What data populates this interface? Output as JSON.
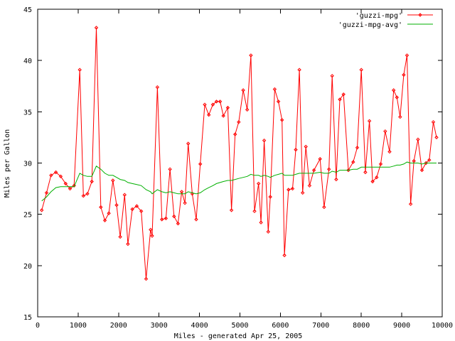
{
  "chart_data": {
    "type": "line",
    "xlabel": "Miles - generated Apr 25, 2005",
    "ylabel": "Miles per Gallon",
    "xlim": [
      0,
      10000
    ],
    "ylim": [
      15,
      45
    ],
    "xticks": [
      0,
      1000,
      2000,
      3000,
      4000,
      5000,
      6000,
      7000,
      8000,
      9000,
      10000
    ],
    "yticks": [
      15,
      20,
      25,
      30,
      35,
      40,
      45
    ],
    "grid": false,
    "legend_position": "top-right",
    "series": [
      {
        "name": "'guzzi-mpg'",
        "color": "#ff0000",
        "style": "line-with-points",
        "points": [
          [
            100,
            25.4
          ],
          [
            220,
            27.1
          ],
          [
            330,
            28.8
          ],
          [
            450,
            29.1
          ],
          [
            570,
            28.7
          ],
          [
            690,
            28.0
          ],
          [
            800,
            27.5
          ],
          [
            900,
            27.8
          ],
          [
            1040,
            39.1
          ],
          [
            1130,
            26.8
          ],
          [
            1230,
            27.0
          ],
          [
            1340,
            28.2
          ],
          [
            1450,
            43.2
          ],
          [
            1560,
            25.7
          ],
          [
            1660,
            24.4
          ],
          [
            1760,
            25.1
          ],
          [
            1860,
            28.3
          ],
          [
            1950,
            25.9
          ],
          [
            2040,
            22.8
          ],
          [
            2150,
            26.9
          ],
          [
            2230,
            22.1
          ],
          [
            2340,
            25.5
          ],
          [
            2450,
            25.8
          ],
          [
            2560,
            25.3
          ],
          [
            2680,
            18.7
          ],
          [
            2790,
            23.5
          ],
          [
            2830,
            22.9
          ],
          [
            2960,
            37.4
          ],
          [
            3070,
            24.5
          ],
          [
            3170,
            24.6
          ],
          [
            3270,
            29.4
          ],
          [
            3370,
            24.8
          ],
          [
            3470,
            24.1
          ],
          [
            3560,
            27.2
          ],
          [
            3640,
            26.1
          ],
          [
            3720,
            31.9
          ],
          [
            3820,
            27.0
          ],
          [
            3920,
            24.5
          ],
          [
            4020,
            29.9
          ],
          [
            4130,
            35.7
          ],
          [
            4230,
            34.7
          ],
          [
            4330,
            35.7
          ],
          [
            4420,
            36.0
          ],
          [
            4510,
            36.0
          ],
          [
            4590,
            34.6
          ],
          [
            4700,
            35.4
          ],
          [
            4790,
            25.4
          ],
          [
            4880,
            32.8
          ],
          [
            4970,
            34.0
          ],
          [
            5080,
            37.1
          ],
          [
            5180,
            35.2
          ],
          [
            5270,
            40.5
          ],
          [
            5360,
            25.3
          ],
          [
            5460,
            28.0
          ],
          [
            5520,
            24.2
          ],
          [
            5600,
            32.2
          ],
          [
            5700,
            23.3
          ],
          [
            5750,
            26.7
          ],
          [
            5860,
            37.2
          ],
          [
            5950,
            36.0
          ],
          [
            6040,
            34.2
          ],
          [
            6100,
            21.0
          ],
          [
            6200,
            27.4
          ],
          [
            6300,
            27.5
          ],
          [
            6380,
            31.3
          ],
          [
            6470,
            39.1
          ],
          [
            6550,
            27.1
          ],
          [
            6630,
            31.6
          ],
          [
            6720,
            27.8
          ],
          [
            6830,
            29.3
          ],
          [
            6980,
            30.4
          ],
          [
            7080,
            25.7
          ],
          [
            7200,
            29.4
          ],
          [
            7280,
            38.5
          ],
          [
            7380,
            28.4
          ],
          [
            7470,
            36.2
          ],
          [
            7560,
            36.7
          ],
          [
            7680,
            29.3
          ],
          [
            7800,
            30.1
          ],
          [
            7900,
            31.5
          ],
          [
            8000,
            39.1
          ],
          [
            8100,
            29.1
          ],
          [
            8200,
            34.1
          ],
          [
            8280,
            28.2
          ],
          [
            8380,
            28.6
          ],
          [
            8480,
            29.9
          ],
          [
            8590,
            33.1
          ],
          [
            8700,
            31.1
          ],
          [
            8800,
            37.1
          ],
          [
            8880,
            36.4
          ],
          [
            8960,
            34.5
          ],
          [
            9050,
            38.6
          ],
          [
            9130,
            40.5
          ],
          [
            9220,
            26.0
          ],
          [
            9300,
            30.2
          ],
          [
            9400,
            32.3
          ],
          [
            9500,
            29.3
          ],
          [
            9600,
            30.0
          ],
          [
            9680,
            30.3
          ],
          [
            9780,
            34.0
          ],
          [
            9860,
            32.5
          ]
        ]
      },
      {
        "name": "'guzzi-mpg-avg'",
        "color": "#00b000",
        "style": "line",
        "points": [
          [
            100,
            26.3
          ],
          [
            220,
            26.7
          ],
          [
            330,
            27.2
          ],
          [
            450,
            27.6
          ],
          [
            570,
            27.7
          ],
          [
            690,
            27.7
          ],
          [
            800,
            27.7
          ],
          [
            900,
            27.7
          ],
          [
            1040,
            29.0
          ],
          [
            1130,
            28.8
          ],
          [
            1230,
            28.7
          ],
          [
            1340,
            28.7
          ],
          [
            1450,
            29.7
          ],
          [
            1560,
            29.4
          ],
          [
            1660,
            29.0
          ],
          [
            1760,
            28.8
          ],
          [
            1860,
            28.8
          ],
          [
            1950,
            28.6
          ],
          [
            2040,
            28.4
          ],
          [
            2150,
            28.3
          ],
          [
            2230,
            28.1
          ],
          [
            2340,
            28.0
          ],
          [
            2450,
            27.9
          ],
          [
            2560,
            27.8
          ],
          [
            2680,
            27.4
          ],
          [
            2790,
            27.2
          ],
          [
            2830,
            27.0
          ],
          [
            2960,
            27.4
          ],
          [
            3070,
            27.2
          ],
          [
            3170,
            27.1
          ],
          [
            3270,
            27.2
          ],
          [
            3370,
            27.1
          ],
          [
            3470,
            27.0
          ],
          [
            3560,
            27.0
          ],
          [
            3640,
            27.0
          ],
          [
            3720,
            27.2
          ],
          [
            3820,
            27.1
          ],
          [
            3920,
            27.0
          ],
          [
            4020,
            27.1
          ],
          [
            4130,
            27.4
          ],
          [
            4230,
            27.6
          ],
          [
            4330,
            27.8
          ],
          [
            4420,
            28.0
          ],
          [
            4510,
            28.1
          ],
          [
            4590,
            28.2
          ],
          [
            4700,
            28.3
          ],
          [
            4790,
            28.3
          ],
          [
            4880,
            28.4
          ],
          [
            4970,
            28.5
          ],
          [
            5080,
            28.6
          ],
          [
            5180,
            28.7
          ],
          [
            5270,
            28.9
          ],
          [
            5360,
            28.8
          ],
          [
            5460,
            28.8
          ],
          [
            5520,
            28.7
          ],
          [
            5600,
            28.8
          ],
          [
            5700,
            28.7
          ],
          [
            5750,
            28.6
          ],
          [
            5860,
            28.8
          ],
          [
            5950,
            28.9
          ],
          [
            6040,
            29.0
          ],
          [
            6100,
            28.8
          ],
          [
            6200,
            28.8
          ],
          [
            6300,
            28.8
          ],
          [
            6380,
            28.9
          ],
          [
            6470,
            29.0
          ],
          [
            6550,
            29.0
          ],
          [
            6630,
            29.0
          ],
          [
            6720,
            29.0
          ],
          [
            6830,
            29.0
          ],
          [
            6980,
            29.1
          ],
          [
            7080,
            29.0
          ],
          [
            7200,
            29.0
          ],
          [
            7280,
            29.2
          ],
          [
            7380,
            29.1
          ],
          [
            7470,
            29.3
          ],
          [
            7560,
            29.3
          ],
          [
            7680,
            29.3
          ],
          [
            7800,
            29.4
          ],
          [
            7900,
            29.4
          ],
          [
            8000,
            29.6
          ],
          [
            8100,
            29.6
          ],
          [
            8200,
            29.6
          ],
          [
            8280,
            29.6
          ],
          [
            8380,
            29.6
          ],
          [
            8480,
            29.6
          ],
          [
            8590,
            29.6
          ],
          [
            8700,
            29.6
          ],
          [
            8800,
            29.7
          ],
          [
            8880,
            29.8
          ],
          [
            8960,
            29.8
          ],
          [
            9050,
            29.9
          ],
          [
            9130,
            30.1
          ],
          [
            9220,
            30.0
          ],
          [
            9300,
            30.0
          ],
          [
            9400,
            30.0
          ],
          [
            9500,
            29.9
          ],
          [
            9600,
            30.0
          ],
          [
            9680,
            30.0
          ],
          [
            9780,
            30.0
          ],
          [
            9860,
            30.0
          ]
        ]
      }
    ]
  }
}
